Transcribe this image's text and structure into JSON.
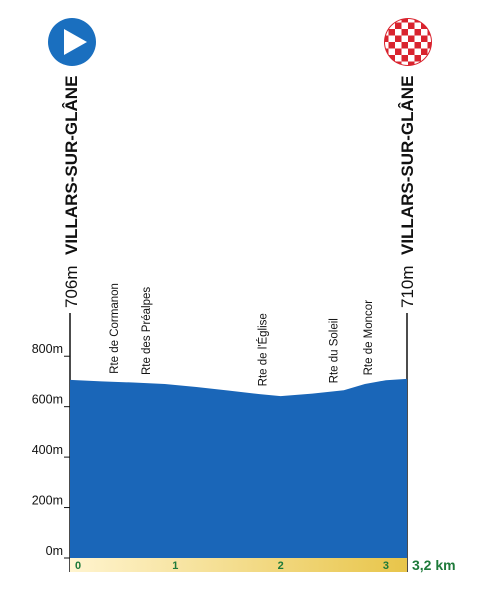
{
  "start": {
    "town": "VILLARS-SUR-GLÂNE",
    "altitude": "706m",
    "icon": "play-icon",
    "icon_color": "#1a6fbf"
  },
  "finish": {
    "town": "VILLARS-SUR-GLÂNE",
    "altitude": "710m",
    "icon": "checkered-flag-icon",
    "icon_color": "#d9232e"
  },
  "total_distance_label": "3,2 km",
  "colors": {
    "profile_fill": "#1a66b8",
    "axis": "#111111",
    "distance_bar_left": "#fff4cf",
    "distance_bar_right": "#e8c54a",
    "distance_text": "#1e7a3a"
  },
  "chart_data": {
    "type": "area",
    "title": "",
    "xlabel": "",
    "ylabel": "",
    "x_unit": "km",
    "y_unit": "m",
    "xlim": [
      0,
      3.2
    ],
    "ylim": [
      0,
      900
    ],
    "y_ticks": [
      0,
      200,
      400,
      600,
      800
    ],
    "y_tick_labels": [
      "0m",
      "200m",
      "400m",
      "600m",
      "800m"
    ],
    "x_ticks": [
      0,
      1,
      2,
      3
    ],
    "x_tick_labels": [
      "0",
      "1",
      "2",
      "3"
    ],
    "series": [
      {
        "x": [
          0,
          0.3,
          0.6,
          0.9,
          1.2,
          1.5,
          1.8,
          2.0,
          2.3,
          2.6,
          2.8,
          3.0,
          3.2
        ],
        "y": [
          706,
          700,
          696,
          690,
          678,
          664,
          650,
          642,
          652,
          665,
          690,
          705,
          710
        ]
      }
    ],
    "annotations": [
      {
        "label": "Rte de Cormanon",
        "x": 0.42
      },
      {
        "label": "Rte des Préalpes",
        "x": 0.72
      },
      {
        "label": "Rte de l'Église",
        "x": 1.83
      },
      {
        "label": "Rte du Soleil",
        "x": 2.5
      },
      {
        "label": "Rte de Moncor",
        "x": 2.83
      }
    ]
  }
}
